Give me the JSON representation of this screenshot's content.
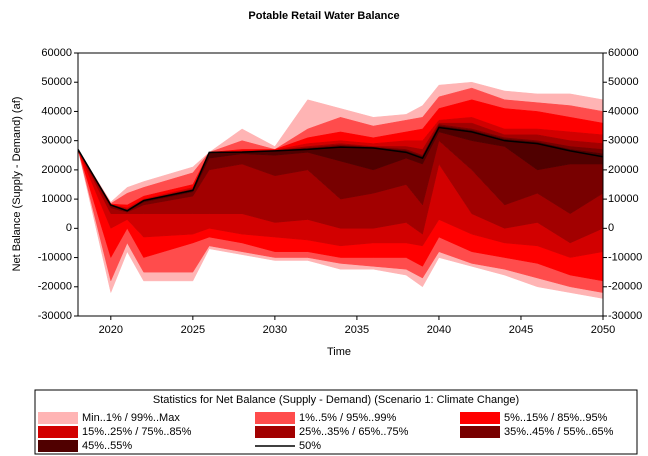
{
  "chart_data": {
    "type": "band",
    "title": "Potable Retail Water Balance",
    "xlabel": "Time",
    "ylabel": "Net Balance (Supply - Demand) (af)",
    "legend_title": "Statistics for Net Balance (Supply - Demand) (Scenario 1: Climate Change)",
    "x": [
      2018,
      2020,
      2021,
      2022,
      2025,
      2026,
      2028,
      2030,
      2032,
      2034,
      2036,
      2038,
      2039,
      2040,
      2042,
      2044,
      2046,
      2048,
      2050
    ],
    "xlim": [
      2018,
      2050
    ],
    "xticks": [
      2020,
      2025,
      2030,
      2035,
      2040,
      2045,
      2050
    ],
    "ylim": [
      -30000,
      60000
    ],
    "yticks": [
      -30000,
      -20000,
      -10000,
      0,
      10000,
      20000,
      30000,
      40000,
      50000,
      60000
    ],
    "bands": [
      {
        "name": "Min..1% / 99%..Max",
        "color": "#ffb4b4",
        "ranges": [
          {
            "low": [
              27000,
              -22000,
              -8000,
              -18000,
              -18000,
              -7000,
              -9000,
              -11000,
              -11000,
              -14000,
              -14000,
              -16000,
              -20000,
              -10000,
              -13000,
              -16000,
              -20000,
              -22000,
              -24000
            ],
            "high": [
              27000,
              -18000,
              -5000,
              -15000,
              -15000,
              -6000,
              -8000,
              -10000,
              -10000,
              -12000,
              -13000,
              -14000,
              -17000,
              -8000,
              -12000,
              -14000,
              -17000,
              -20000,
              -22000
            ]
          },
          {
            "low": [
              27000,
              8500,
              12000,
              14000,
              19000,
              26000,
              30000,
              27000,
              34000,
              38000,
              35000,
              37000,
              38000,
              45000,
              48000,
              44000,
              43000,
              42000,
              40000
            ],
            "high": [
              27000,
              9000,
              14000,
              16000,
              21000,
              26000,
              34000,
              28000,
              44000,
              41000,
              38000,
              39000,
              42000,
              49000,
              50000,
              47000,
              46000,
              46000,
              44000
            ]
          }
        ]
      },
      {
        "name": "1%..5% / 95%..99%",
        "color": "#ff4c4c",
        "ranges": [
          {
            "low": [
              27000,
              -18000,
              -5000,
              -15000,
              -15000,
              -6000,
              -8000,
              -10000,
              -10000,
              -12000,
              -13000,
              -14000,
              -17000,
              -8000,
              -12000,
              -14000,
              -17000,
              -20000,
              -22000
            ],
            "high": [
              27000,
              -10000,
              0,
              -10000,
              -5000,
              -3000,
              -5000,
              -8000,
              -8000,
              -10000,
              -10000,
              -10000,
              -13000,
              -3000,
              -8000,
              -10000,
              -12000,
              -16000,
              -18000
            ]
          },
          {
            "low": [
              27000,
              8300,
              8000,
              11000,
              15000,
              26000,
              27000,
              27000,
              31000,
              33000,
              31000,
              33000,
              34000,
              41000,
              44000,
              41000,
              40000,
              38000,
              36000
            ],
            "high": [
              27000,
              8500,
              12000,
              14000,
              19000,
              26000,
              30000,
              27000,
              34000,
              38000,
              35000,
              37000,
              38000,
              45000,
              48000,
              44000,
              43000,
              42000,
              40000
            ]
          }
        ]
      },
      {
        "name": "5%..15% / 85%..95%",
        "color": "#ff0000",
        "ranges": [
          {
            "low": [
              27000,
              -10000,
              0,
              -10000,
              -5000,
              -3000,
              -5000,
              -8000,
              -8000,
              -10000,
              -10000,
              -10000,
              -13000,
              -3000,
              -8000,
              -10000,
              -12000,
              -16000,
              -18000
            ],
            "high": [
              27000,
              0,
              3000,
              -3000,
              -2000,
              0,
              -2000,
              -3000,
              -4000,
              -6000,
              -5000,
              -5000,
              -6000,
              3000,
              -2000,
              -5000,
              -6000,
              -10000,
              -8000
            ]
          },
          {
            "low": [
              27000,
              8100,
              7000,
              10000,
              14000,
              26000,
              26500,
              26800,
              29000,
              30000,
              29000,
              30000,
              30000,
              37000,
              38000,
              34000,
              34000,
              33000,
              32000
            ],
            "high": [
              27000,
              8300,
              8000,
              11000,
              15000,
              26000,
              27000,
              27000,
              31000,
              33000,
              31000,
              33000,
              34000,
              41000,
              44000,
              41000,
              40000,
              38000,
              36000
            ]
          }
        ]
      },
      {
        "name": "15%..25% / 75%..85%",
        "color": "#d20000",
        "ranges": [
          {
            "low": [
              27000,
              0,
              3000,
              -3000,
              -2000,
              0,
              -2000,
              -3000,
              -4000,
              -6000,
              -5000,
              -5000,
              -6000,
              3000,
              -2000,
              -5000,
              -6000,
              -10000,
              -8000
            ],
            "high": [
              27000,
              5000,
              5000,
              5000,
              5000,
              5000,
              5000,
              2000,
              3000,
              0,
              0,
              2000,
              -2000,
              22000,
              5000,
              0,
              2000,
              -5000,
              0
            ]
          },
          {
            "low": [
              27000,
              8000,
              6500,
              9700,
              13500,
              26000,
              26300,
              26600,
              28000,
              29000,
              28000,
              28000,
              27000,
              36000,
              36000,
              32000,
              32000,
              30000,
              29000
            ],
            "high": [
              27000,
              8100,
              7000,
              10000,
              14000,
              26000,
              26500,
              26800,
              29000,
              30000,
              29000,
              30000,
              30000,
              37000,
              38000,
              34000,
              34000,
              33000,
              32000
            ]
          }
        ]
      },
      {
        "name": "25%..35% / 65%..75%",
        "color": "#a20000",
        "ranges": [
          {
            "low": [
              27000,
              5000,
              5000,
              5000,
              5000,
              5000,
              5000,
              2000,
              3000,
              0,
              0,
              2000,
              -2000,
              22000,
              5000,
              0,
              2000,
              -5000,
              0
            ],
            "high": [
              27000,
              7000,
              5500,
              8000,
              11000,
              20000,
              22000,
              18000,
              20000,
              10000,
              12000,
              15000,
              8000,
              30000,
              20000,
              8000,
              12000,
              5000,
              12000
            ]
          },
          {
            "low": [
              27000,
              8000,
              6200,
              9600,
              13200,
              26000,
              26200,
              26500,
              27500,
              28500,
              27800,
              27000,
              25000,
              35500,
              34000,
              31000,
              30000,
              28000,
              27000
            ],
            "high": [
              27000,
              8000,
              6500,
              9700,
              13500,
              26000,
              26300,
              26600,
              28000,
              29000,
              28000,
              28000,
              27000,
              36000,
              36000,
              32000,
              32000,
              30000,
              29000
            ]
          }
        ]
      },
      {
        "name": "35%..45% / 55%..65%",
        "color": "#780000",
        "ranges": [
          {
            "low": [
              27000,
              7000,
              5500,
              8000,
              11000,
              20000,
              22000,
              18000,
              20000,
              10000,
              12000,
              15000,
              8000,
              30000,
              20000,
              8000,
              12000,
              5000,
              12000
            ],
            "high": [
              27000,
              7800,
              5800,
              9000,
              12500,
              24000,
              25500,
              25000,
              26000,
              23000,
              20000,
              24000,
              22000,
              33000,
              30000,
              28000,
              20000,
              22000,
              22000
            ]
          },
          {
            "low": [
              27000,
              8000,
              6100,
              9500,
              13100,
              26000,
              26100,
              26500,
              27200,
              28000,
              27600,
              26500,
              24500,
              35000,
              33500,
              30500,
              29500,
              27000,
              25500
            ],
            "high": [
              27000,
              8000,
              6200,
              9600,
              13200,
              26000,
              26200,
              26500,
              27500,
              28500,
              27800,
              27000,
              25000,
              35500,
              34000,
              31000,
              30000,
              28000,
              27000
            ]
          }
        ]
      },
      {
        "name": "45%..55%",
        "color": "#500000",
        "ranges": [
          {
            "low": [
              27000,
              7800,
              5800,
              9000,
              12500,
              24000,
              25500,
              25000,
              26000,
              23000,
              20000,
              24000,
              22000,
              33000,
              30000,
              28000,
              20000,
              22000,
              22000
            ],
            "high": [
              27000,
              8000,
              6100,
              9500,
              13100,
              26000,
              26100,
              26500,
              27200,
              28000,
              27600,
              26500,
              24500,
              35000,
              33500,
              30500,
              29500,
              27000,
              25500
            ]
          }
        ]
      }
    ],
    "series": [
      {
        "name": "50%",
        "color": "#000000",
        "values": [
          27000,
          8000,
          6000,
          9500,
          13000,
          26000,
          26100,
          26500,
          27000,
          27800,
          27500,
          26000,
          24000,
          34500,
          33000,
          30000,
          29000,
          26500,
          24500
        ]
      }
    ]
  }
}
